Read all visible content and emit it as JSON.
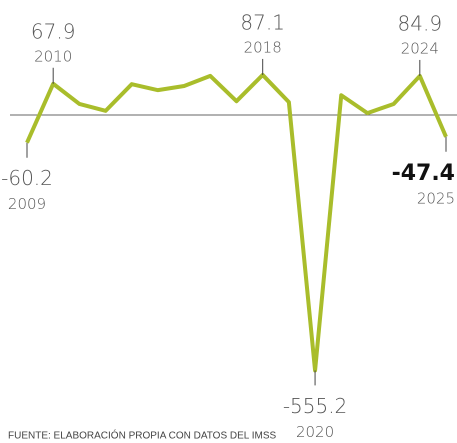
{
  "chart_data": {
    "type": "line",
    "categories": [
      "2009",
      "2010",
      null,
      null,
      null,
      null,
      null,
      null,
      null,
      "2018",
      null,
      "2020",
      null,
      null,
      null,
      "2024",
      "2025"
    ],
    "values": [
      -60.2,
      67.9,
      24,
      9,
      67,
      54,
      63,
      85,
      30,
      87.1,
      28,
      -555.2,
      43,
      4,
      24,
      84.9,
      -47.4
    ],
    "color": "#a9bd2b",
    "ylim": [
      -650,
      250
    ],
    "source": "FUENTE: ELABORACIÓN PROPIA CON DATOS DEL IMSS"
  }
}
